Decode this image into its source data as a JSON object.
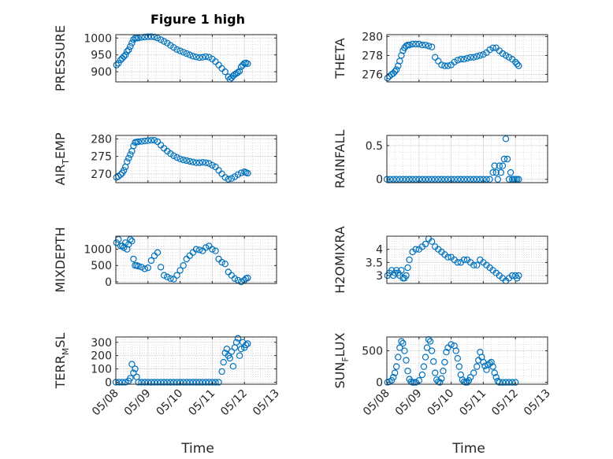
{
  "figure": {
    "title": "Figure 1 high",
    "xlabel": "Time"
  },
  "style": {
    "marker_color": "#0072BD",
    "grid_color": "#c8c8c8",
    "axis_color": "#262626"
  },
  "xaxis": {
    "ticks": [
      "05/08",
      "05/09",
      "05/10",
      "05/11",
      "05/12",
      "05/13"
    ],
    "tick_values": [
      0,
      1,
      2,
      3,
      4,
      5
    ],
    "xlim": [
      0,
      5
    ],
    "unit": "days from 05/08"
  },
  "chart_data": [
    {
      "id": "pressure",
      "type": "scatter",
      "title": "Figure 1 high",
      "ylabel": "PRESSURE",
      "ylabel_sub": "",
      "ylim": [
        870,
        1010
      ],
      "yticks": [
        900,
        950,
        1000
      ],
      "ytick_labels": [
        "900",
        "950",
        "1000"
      ],
      "x": [
        0.02,
        0.08,
        0.15,
        0.2,
        0.25,
        0.3,
        0.35,
        0.4,
        0.45,
        0.5,
        0.55,
        0.6,
        0.65,
        0.7,
        0.8,
        0.9,
        1.0,
        1.1,
        1.2,
        1.3,
        1.4,
        1.5,
        1.6,
        1.7,
        1.8,
        1.9,
        2.0,
        2.1,
        2.2,
        2.3,
        2.4,
        2.5,
        2.6,
        2.7,
        2.8,
        2.9,
        3.0,
        3.1,
        3.2,
        3.3,
        3.4,
        3.5,
        3.55,
        3.6,
        3.65,
        3.7,
        3.75,
        3.8,
        3.85,
        3.9,
        3.95,
        4.0,
        4.05,
        4.1
      ],
      "y": [
        920,
        925,
        935,
        940,
        945,
        950,
        960,
        965,
        975,
        985,
        995,
        1000,
        1000,
        1000,
        1002,
        1003,
        1004,
        1004,
        1003,
        1000,
        995,
        990,
        985,
        978,
        972,
        966,
        962,
        958,
        954,
        950,
        946,
        944,
        942,
        943,
        945,
        943,
        938,
        930,
        920,
        910,
        900,
        885,
        878,
        882,
        888,
        892,
        895,
        898,
        902,
        915,
        920,
        925,
        926,
        924
      ]
    },
    {
      "id": "theta",
      "type": "scatter",
      "ylabel": "THETA",
      "ylabel_sub": "",
      "ylim": [
        275.2,
        280.2
      ],
      "yticks": [
        276,
        278,
        280
      ],
      "ytick_labels": [
        "276",
        "278",
        "280"
      ],
      "x": [
        0.02,
        0.08,
        0.15,
        0.2,
        0.25,
        0.3,
        0.35,
        0.4,
        0.45,
        0.5,
        0.55,
        0.6,
        0.65,
        0.7,
        0.8,
        0.9,
        1.0,
        1.1,
        1.2,
        1.3,
        1.4,
        1.5,
        1.6,
        1.7,
        1.8,
        1.9,
        2.0,
        2.1,
        2.2,
        2.3,
        2.4,
        2.5,
        2.6,
        2.7,
        2.8,
        2.9,
        3.0,
        3.1,
        3.2,
        3.3,
        3.4,
        3.5,
        3.6,
        3.7,
        3.8,
        3.9,
        4.0,
        4.05,
        4.1
      ],
      "y": [
        275.6,
        275.8,
        276.0,
        276.1,
        276.3,
        276.5,
        276.9,
        277.4,
        278.0,
        278.5,
        278.8,
        279.0,
        279.1,
        279.1,
        279.2,
        279.2,
        279.2,
        279.1,
        279.1,
        279.0,
        278.9,
        277.8,
        277.4,
        277.0,
        276.9,
        276.9,
        277.0,
        277.3,
        277.5,
        277.6,
        277.6,
        277.7,
        277.8,
        277.8,
        277.9,
        278.0,
        278.1,
        278.3,
        278.6,
        278.8,
        278.8,
        278.5,
        278.2,
        278.0,
        277.8,
        277.6,
        277.3,
        277.1,
        276.9
      ]
    },
    {
      "id": "air_temp",
      "type": "scatter",
      "ylabel": "AIR",
      "ylabel_sub": "T",
      "ylabel_rest": "EMP",
      "ylim": [
        267.5,
        281
      ],
      "yticks": [
        270,
        275,
        280
      ],
      "ytick_labels": [
        "270",
        "275",
        "280"
      ],
      "x": [
        0.02,
        0.08,
        0.15,
        0.2,
        0.25,
        0.3,
        0.35,
        0.4,
        0.45,
        0.5,
        0.55,
        0.6,
        0.65,
        0.7,
        0.8,
        0.9,
        1.0,
        1.1,
        1.2,
        1.3,
        1.4,
        1.5,
        1.6,
        1.7,
        1.8,
        1.9,
        2.0,
        2.1,
        2.2,
        2.3,
        2.4,
        2.5,
        2.6,
        2.7,
        2.8,
        2.9,
        3.0,
        3.1,
        3.2,
        3.3,
        3.4,
        3.5,
        3.6,
        3.7,
        3.8,
        3.9,
        4.0,
        4.05,
        4.1
      ],
      "y": [
        269.0,
        269.3,
        269.8,
        270.3,
        271.0,
        272.0,
        273.5,
        274.5,
        275.5,
        276.5,
        278.0,
        279.0,
        279.1,
        279.2,
        279.3,
        279.4,
        279.5,
        279.6,
        279.6,
        279.2,
        278.2,
        277.3,
        276.5,
        275.8,
        275.2,
        274.7,
        274.3,
        274.0,
        273.8,
        273.6,
        273.4,
        273.2,
        273.2,
        273.3,
        273.2,
        273.0,
        272.5,
        272.0,
        271.0,
        270.0,
        269.0,
        268.5,
        268.7,
        269.2,
        269.8,
        270.3,
        270.6,
        270.4,
        270.2
      ]
    },
    {
      "id": "rainfall",
      "type": "scatter",
      "ylabel": "RAINFALL",
      "ylabel_sub": "",
      "ylim": [
        -0.05,
        0.65
      ],
      "yticks": [
        0,
        0.5
      ],
      "ytick_labels": [
        "0",
        "0.5"
      ],
      "x": [
        0.0,
        0.1,
        0.2,
        0.3,
        0.4,
        0.5,
        0.6,
        0.7,
        0.8,
        0.9,
        1.0,
        1.1,
        1.2,
        1.3,
        1.4,
        1.5,
        1.6,
        1.7,
        1.8,
        1.9,
        2.0,
        2.1,
        2.2,
        2.3,
        2.4,
        2.5,
        2.6,
        2.7,
        2.8,
        2.9,
        3.0,
        3.1,
        3.2,
        3.3,
        3.35,
        3.4,
        3.45,
        3.5,
        3.55,
        3.6,
        3.65,
        3.7,
        3.75,
        3.8,
        3.85,
        3.9,
        3.95,
        4.0,
        4.05,
        4.1
      ],
      "y": [
        0,
        0,
        0,
        0,
        0,
        0,
        0,
        0,
        0,
        0,
        0,
        0,
        0,
        0,
        0,
        0,
        0,
        0,
        0,
        0,
        0,
        0,
        0,
        0,
        0,
        0,
        0,
        0,
        0,
        0,
        0,
        0,
        0,
        0.1,
        0.2,
        0.1,
        0,
        0.2,
        0.1,
        0.2,
        0.3,
        0.6,
        0.3,
        0,
        0.1,
        0,
        0,
        0,
        0,
        0
      ]
    },
    {
      "id": "mixdepth",
      "type": "scatter",
      "ylabel": "MIXDEPTH",
      "ylabel_sub": "",
      "ylim": [
        -50,
        1400
      ],
      "yticks": [
        0,
        500,
        1000
      ],
      "ytick_labels": [
        "0",
        "500",
        "1000"
      ],
      "x": [
        0.02,
        0.08,
        0.15,
        0.2,
        0.25,
        0.3,
        0.35,
        0.4,
        0.45,
        0.5,
        0.55,
        0.6,
        0.65,
        0.7,
        0.8,
        0.9,
        1.0,
        1.1,
        1.2,
        1.3,
        1.4,
        1.5,
        1.6,
        1.7,
        1.8,
        1.9,
        2.0,
        2.1,
        2.2,
        2.3,
        2.4,
        2.5,
        2.6,
        2.7,
        2.8,
        2.9,
        3.0,
        3.1,
        3.2,
        3.3,
        3.4,
        3.5,
        3.6,
        3.7,
        3.8,
        3.9,
        4.0,
        4.05,
        4.1
      ],
      "y": [
        1200,
        1300,
        1100,
        1100,
        1050,
        1200,
        1000,
        1150,
        1300,
        1250,
        700,
        500,
        500,
        480,
        450,
        400,
        430,
        650,
        800,
        900,
        450,
        200,
        150,
        100,
        80,
        200,
        350,
        500,
        700,
        800,
        900,
        1000,
        980,
        950,
        1050,
        1100,
        1000,
        950,
        700,
        600,
        550,
        300,
        200,
        100,
        50,
        0,
        50,
        100,
        120
      ]
    },
    {
      "id": "h2omixra",
      "type": "scatter",
      "ylabel": "H2OMIXRA",
      "ylabel_sub": "",
      "ylim": [
        2.7,
        4.5
      ],
      "yticks": [
        3,
        3.5,
        4
      ],
      "ytick_labels": [
        "3",
        "3.5",
        "4"
      ],
      "x": [
        0.02,
        0.08,
        0.15,
        0.2,
        0.25,
        0.3,
        0.35,
        0.4,
        0.45,
        0.5,
        0.55,
        0.6,
        0.65,
        0.7,
        0.8,
        0.9,
        1.0,
        1.1,
        1.2,
        1.3,
        1.4,
        1.5,
        1.6,
        1.7,
        1.8,
        1.9,
        2.0,
        2.1,
        2.2,
        2.3,
        2.4,
        2.5,
        2.6,
        2.7,
        2.8,
        2.9,
        3.0,
        3.1,
        3.2,
        3.3,
        3.4,
        3.5,
        3.6,
        3.7,
        3.8,
        3.9,
        4.0,
        4.05,
        4.1
      ],
      "y": [
        3.0,
        3.1,
        3.2,
        3.0,
        3.1,
        3.2,
        3.1,
        3.0,
        3.2,
        2.9,
        2.9,
        3.0,
        3.3,
        3.6,
        3.9,
        4.0,
        4.0,
        4.1,
        4.2,
        4.4,
        4.3,
        4.1,
        4.0,
        3.9,
        3.8,
        3.7,
        3.7,
        3.6,
        3.5,
        3.5,
        3.6,
        3.6,
        3.5,
        3.4,
        3.4,
        3.6,
        3.5,
        3.4,
        3.3,
        3.2,
        3.1,
        3.0,
        2.9,
        2.8,
        2.9,
        3.0,
        3.0,
        2.9,
        3.0
      ]
    },
    {
      "id": "terr_msl",
      "type": "scatter",
      "ylabel": "TERR",
      "ylabel_sub": "M",
      "ylabel_rest": "SL",
      "ylim": [
        -15,
        340
      ],
      "yticks": [
        0,
        100,
        200,
        300
      ],
      "ytick_labels": [
        "0",
        "100",
        "200",
        "300"
      ],
      "x": [
        0.0,
        0.1,
        0.2,
        0.3,
        0.4,
        0.45,
        0.5,
        0.55,
        0.6,
        0.65,
        0.7,
        0.8,
        0.9,
        1.0,
        1.1,
        1.2,
        1.3,
        1.4,
        1.5,
        1.6,
        1.7,
        1.8,
        1.9,
        2.0,
        2.1,
        2.2,
        2.3,
        2.4,
        2.5,
        2.6,
        2.7,
        2.8,
        2.9,
        3.0,
        3.1,
        3.2,
        3.3,
        3.35,
        3.4,
        3.45,
        3.5,
        3.55,
        3.6,
        3.65,
        3.7,
        3.75,
        3.8,
        3.85,
        3.9,
        3.95,
        4.0,
        4.05,
        4.1
      ],
      "y": [
        0,
        0,
        0,
        0,
        10,
        30,
        135,
        70,
        100,
        40,
        0,
        0,
        0,
        0,
        0,
        0,
        0,
        0,
        0,
        0,
        0,
        0,
        0,
        0,
        0,
        0,
        0,
        0,
        0,
        0,
        0,
        0,
        0,
        0,
        0,
        0,
        80,
        150,
        220,
        250,
        200,
        180,
        230,
        120,
        260,
        300,
        330,
        200,
        250,
        300,
        260,
        280,
        290
      ]
    },
    {
      "id": "sun_flux",
      "type": "scatter",
      "ylabel": "SUN",
      "ylabel_sub": "F",
      "ylabel_rest": "LUX",
      "ylim": [
        -30,
        720
      ],
      "yticks": [
        0,
        500
      ],
      "ytick_labels": [
        "0",
        "500"
      ],
      "x": [
        0.02,
        0.08,
        0.15,
        0.2,
        0.25,
        0.3,
        0.35,
        0.4,
        0.45,
        0.5,
        0.55,
        0.6,
        0.65,
        0.7,
        0.75,
        0.8,
        0.85,
        0.9,
        1.0,
        1.1,
        1.15,
        1.2,
        1.25,
        1.3,
        1.35,
        1.4,
        1.45,
        1.5,
        1.55,
        1.6,
        1.65,
        1.7,
        1.75,
        1.8,
        1.85,
        1.9,
        2.0,
        2.1,
        2.15,
        2.2,
        2.25,
        2.3,
        2.35,
        2.4,
        2.45,
        2.5,
        2.55,
        2.6,
        2.7,
        2.8,
        2.85,
        2.9,
        2.95,
        3.0,
        3.05,
        3.1,
        3.15,
        3.2,
        3.25,
        3.3,
        3.35,
        3.4,
        3.45,
        3.5,
        3.6,
        3.7,
        3.8,
        3.9,
        4.0
      ],
      "y": [
        0,
        10,
        30,
        80,
        150,
        250,
        400,
        550,
        650,
        620,
        500,
        350,
        180,
        50,
        10,
        0,
        0,
        0,
        30,
        120,
        250,
        400,
        550,
        680,
        650,
        500,
        330,
        150,
        40,
        10,
        0,
        60,
        180,
        320,
        480,
        550,
        600,
        580,
        500,
        380,
        250,
        120,
        40,
        10,
        0,
        0,
        30,
        80,
        150,
        250,
        350,
        480,
        400,
        320,
        260,
        200,
        280,
        300,
        320,
        250,
        150,
        80,
        20,
        0,
        0,
        0,
        0,
        0,
        0
      ]
    }
  ]
}
